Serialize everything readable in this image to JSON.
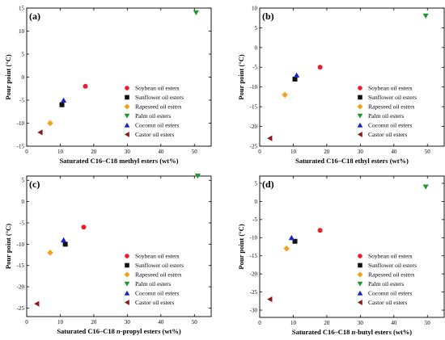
{
  "series_styles": [
    {
      "color": "#e8202a",
      "marker": "circle"
    },
    {
      "color": "#111111",
      "marker": "square"
    },
    {
      "color": "#f5a01a",
      "marker": "diamond"
    },
    {
      "color": "#1f9a2e",
      "marker": "triangle-down"
    },
    {
      "color": "#1a22c8",
      "marker": "triangle-up"
    },
    {
      "color": "#8b1a1a",
      "marker": "triangle-left"
    }
  ],
  "chart_data": [
    {
      "type": "scatter",
      "panel_label": "(a)",
      "xlabel_parts": [
        {
          "t": "Saturated C16–C18 methyl esters (wt%)",
          "i": false
        }
      ],
      "ylabel": "Pour point (°C)",
      "xlim": [
        0,
        55
      ],
      "ylim": [
        -15,
        15
      ],
      "xticks": [
        0,
        10,
        20,
        30,
        40,
        50
      ],
      "yticks": [
        15,
        10,
        5,
        0,
        -5,
        -10,
        -15
      ],
      "legend_position": "right",
      "series": [
        {
          "name": "Soybean oil esters",
          "x": [
            17.5
          ],
          "y": [
            -2
          ]
        },
        {
          "name": "Sunflower oil esters",
          "x": [
            10.5
          ],
          "y": [
            -6
          ]
        },
        {
          "name": "Rapeseed oil esters",
          "x": [
            7
          ],
          "y": [
            -10
          ]
        },
        {
          "name": "Palm oil esters",
          "x": [
            50.5
          ],
          "y": [
            14
          ]
        },
        {
          "name": "Coconut oil esters",
          "x": [
            11
          ],
          "y": [
            -5
          ]
        },
        {
          "name": "Castor oil esters",
          "x": [
            4
          ],
          "y": [
            -12
          ]
        }
      ]
    },
    {
      "type": "scatter",
      "panel_label": "(b)",
      "xlabel_parts": [
        {
          "t": "Saturated C16–C18 ethyl esters (wt%)",
          "i": false
        }
      ],
      "ylabel": "Pour point (°C)",
      "xlim": [
        0,
        55
      ],
      "ylim": [
        -25,
        10
      ],
      "xticks": [
        0,
        10,
        20,
        30,
        40,
        50
      ],
      "yticks": [
        10,
        5,
        0,
        -5,
        -10,
        -15,
        -20,
        -25
      ],
      "legend_position": "right",
      "series": [
        {
          "name": "Soybean oil esters",
          "x": [
            18
          ],
          "y": [
            -5
          ]
        },
        {
          "name": "Sunflower oil esters",
          "x": [
            10.5
          ],
          "y": [
            -8
          ]
        },
        {
          "name": "Rapeseed oil esters",
          "x": [
            7.5
          ],
          "y": [
            -12
          ]
        },
        {
          "name": "Palm oil esters",
          "x": [
            49.5
          ],
          "y": [
            8
          ]
        },
        {
          "name": "Coconut oil esters",
          "x": [
            11
          ],
          "y": [
            -7
          ]
        },
        {
          "name": "Castor oil esters",
          "x": [
            3
          ],
          "y": [
            -23
          ]
        }
      ]
    },
    {
      "type": "scatter",
      "panel_label": "(c)",
      "xlabel_parts": [
        {
          "t": "Saturated C16–C18 ",
          "i": false
        },
        {
          "t": "n",
          "i": true
        },
        {
          "t": "-propyl esters (wt%)",
          "i": false
        }
      ],
      "ylabel": "Pour point (°C)",
      "xlim": [
        0,
        55
      ],
      "ylim": [
        -27,
        6
      ],
      "xticks": [
        0,
        10,
        20,
        30,
        40,
        50
      ],
      "yticks": [
        5,
        0,
        -5,
        -10,
        -15,
        -20,
        -25
      ],
      "legend_position": "right",
      "series": [
        {
          "name": "Soybean oil esters",
          "x": [
            17
          ],
          "y": [
            -6
          ]
        },
        {
          "name": "Sunflower oil esters",
          "x": [
            11.5
          ],
          "y": [
            -10
          ]
        },
        {
          "name": "Rapeseed oil esters",
          "x": [
            7
          ],
          "y": [
            -12
          ]
        },
        {
          "name": "Palm oil esters",
          "x": [
            51
          ],
          "y": [
            6
          ]
        },
        {
          "name": "Coconut oil esters",
          "x": [
            11
          ],
          "y": [
            -9
          ]
        },
        {
          "name": "Castor oil esters",
          "x": [
            3
          ],
          "y": [
            -24
          ]
        }
      ]
    },
    {
      "type": "scatter",
      "panel_label": "(d)",
      "xlabel_parts": [
        {
          "t": "Saturated C16–C18 ",
          "i": false
        },
        {
          "t": "n",
          "i": true
        },
        {
          "t": "-butyl esters (wt%)",
          "i": false
        }
      ],
      "ylabel": "Pour point (°C)",
      "xlim": [
        0,
        55
      ],
      "ylim": [
        -32,
        7
      ],
      "xticks": [
        0,
        10,
        20,
        30,
        40,
        50
      ],
      "yticks": [
        5,
        0,
        -5,
        -10,
        -15,
        -20,
        -25,
        -30
      ],
      "legend_position": "right",
      "series": [
        {
          "name": "Soybean oil esters",
          "x": [
            18
          ],
          "y": [
            -8
          ]
        },
        {
          "name": "Sunflower oil esters",
          "x": [
            10.5
          ],
          "y": [
            -11
          ]
        },
        {
          "name": "Rapeseed oil esters",
          "x": [
            8
          ],
          "y": [
            -13
          ]
        },
        {
          "name": "Palm oil esters",
          "x": [
            49.5
          ],
          "y": [
            4
          ]
        },
        {
          "name": "Coconut oil esters",
          "x": [
            9.5
          ],
          "y": [
            -10
          ]
        },
        {
          "name": "Castor oil esters",
          "x": [
            3
          ],
          "y": [
            -27
          ]
        }
      ]
    }
  ]
}
